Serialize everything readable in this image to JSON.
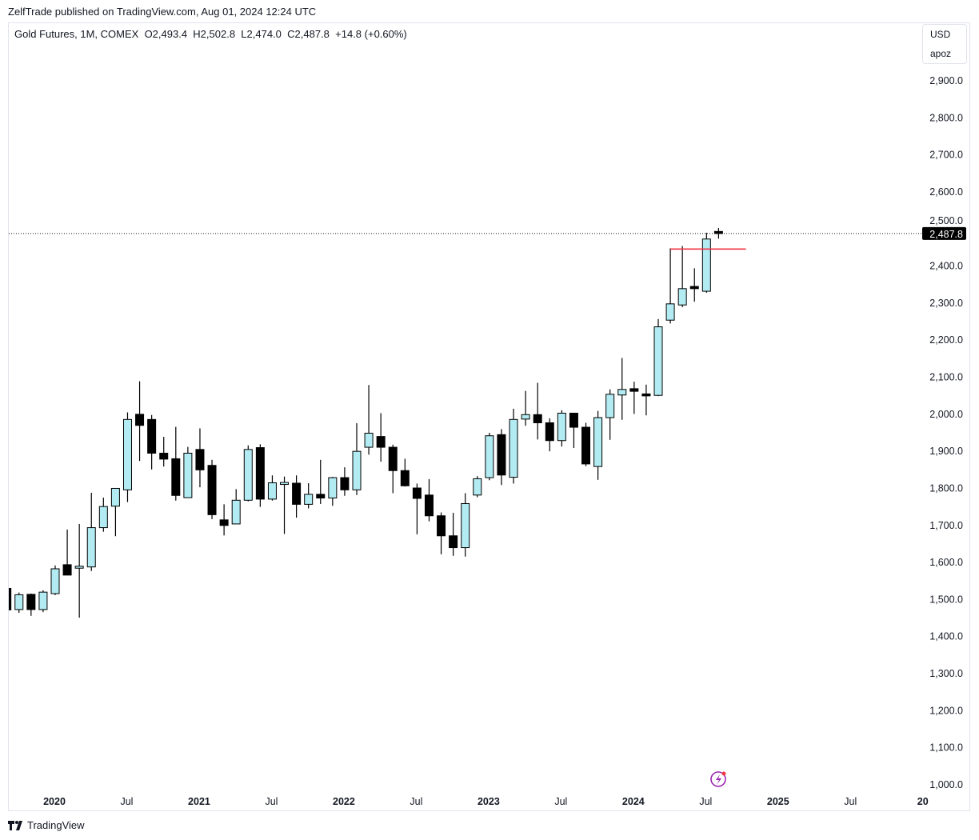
{
  "publisher_line": "ZelfTrade published on TradingView.com, Aug 01, 2024 12:24 UTC",
  "legend": {
    "symbol": "Gold Futures, 1M, COMEX",
    "open": "O2,493.4",
    "high": "H2,502.8",
    "low": "L2,474.0",
    "close": "C2,487.8",
    "change": "+14.8 (+0.60%)"
  },
  "unit_box": {
    "currency": "USD",
    "unit": "apoz"
  },
  "last_price_label": "2,487.8",
  "footer_brand": "TradingView",
  "colors": {
    "up": "#b2ebf2",
    "down": "#000000",
    "outline": "#000000",
    "level": "#f23645",
    "lightning": "#9c27b0"
  },
  "chart_data": {
    "type": "candlestick",
    "title": "Gold Futures, 1M, COMEX",
    "ylim": [
      1000,
      2900
    ],
    "yticks": [
      "1,000.0",
      "1,100.0",
      "1,200.0",
      "1,300.0",
      "1,400.0",
      "1,500.0",
      "1,600.0",
      "1,700.0",
      "1,800.0",
      "1,900.0",
      "2,000.0",
      "2,100.0",
      "2,200.0",
      "2,300.0",
      "2,400.0",
      "2,500.0",
      "2,600.0",
      "2,700.0",
      "2,800.0",
      "2,900.0"
    ],
    "xticks": [
      {
        "label": "2020",
        "bold": true,
        "month": 0
      },
      {
        "label": "Jul",
        "bold": false,
        "month": 6
      },
      {
        "label": "2021",
        "bold": true,
        "month": 12
      },
      {
        "label": "Jul",
        "bold": false,
        "month": 18
      },
      {
        "label": "2022",
        "bold": true,
        "month": 24
      },
      {
        "label": "Jul",
        "bold": false,
        "month": 30
      },
      {
        "label": "2023",
        "bold": true,
        "month": 36
      },
      {
        "label": "Jul",
        "bold": false,
        "month": 42
      },
      {
        "label": "2024",
        "bold": true,
        "month": 48
      },
      {
        "label": "Jul",
        "bold": false,
        "month": 54
      },
      {
        "label": "2025",
        "bold": true,
        "month": 60
      },
      {
        "label": "Jul",
        "bold": false,
        "month": 66
      },
      {
        "label": "20",
        "bold": true,
        "month": 72
      }
    ],
    "last_price": 2487.8,
    "level_line": {
      "price": 2446,
      "from_month": 51,
      "to_month": 57
    },
    "candles": [
      {
        "m": "2019-09",
        "o": 1530,
        "h": 1566,
        "l": 1465,
        "c": 1472
      },
      {
        "m": "2019-10",
        "o": 1473,
        "h": 1519,
        "l": 1464,
        "c": 1513
      },
      {
        "m": "2019-11",
        "o": 1514,
        "h": 1516,
        "l": 1456,
        "c": 1473
      },
      {
        "m": "2019-12",
        "o": 1473,
        "h": 1525,
        "l": 1466,
        "c": 1520
      },
      {
        "m": "2020-01",
        "o": 1516,
        "h": 1592,
        "l": 1512,
        "c": 1583
      },
      {
        "m": "2020-02",
        "o": 1594,
        "h": 1689,
        "l": 1570,
        "c": 1566
      },
      {
        "m": "2020-03",
        "o": 1588,
        "h": 1704,
        "l": 1451,
        "c": 1590
      },
      {
        "m": "2020-04",
        "o": 1588,
        "h": 1788,
        "l": 1577,
        "c": 1694
      },
      {
        "m": "2020-05",
        "o": 1694,
        "h": 1775,
        "l": 1683,
        "c": 1751
      },
      {
        "m": "2020-06",
        "o": 1752,
        "h": 1800,
        "l": 1671,
        "c": 1800
      },
      {
        "m": "2020-07",
        "o": 1796,
        "h": 2005,
        "l": 1763,
        "c": 1986
      },
      {
        "m": "2020-08",
        "o": 2000,
        "h": 2089,
        "l": 1874,
        "c": 1970
      },
      {
        "m": "2020-09",
        "o": 1986,
        "h": 1998,
        "l": 1851,
        "c": 1895
      },
      {
        "m": "2020-10",
        "o": 1895,
        "h": 1939,
        "l": 1859,
        "c": 1879
      },
      {
        "m": "2020-11",
        "o": 1880,
        "h": 1966,
        "l": 1767,
        "c": 1781
      },
      {
        "m": "2020-12",
        "o": 1775,
        "h": 1912,
        "l": 1776,
        "c": 1895
      },
      {
        "m": "2021-01",
        "o": 1905,
        "h": 1962,
        "l": 1803,
        "c": 1850
      },
      {
        "m": "2021-02",
        "o": 1862,
        "h": 1877,
        "l": 1717,
        "c": 1729
      },
      {
        "m": "2021-03",
        "o": 1715,
        "h": 1757,
        "l": 1673,
        "c": 1700
      },
      {
        "m": "2021-04",
        "o": 1704,
        "h": 1798,
        "l": 1704,
        "c": 1768
      },
      {
        "m": "2021-05",
        "o": 1768,
        "h": 1916,
        "l": 1765,
        "c": 1905
      },
      {
        "m": "2021-06",
        "o": 1910,
        "h": 1919,
        "l": 1750,
        "c": 1771
      },
      {
        "m": "2021-07",
        "o": 1771,
        "h": 1835,
        "l": 1767,
        "c": 1815
      },
      {
        "m": "2021-08",
        "o": 1815,
        "h": 1832,
        "l": 1677,
        "c": 1816
      },
      {
        "m": "2021-09",
        "o": 1814,
        "h": 1835,
        "l": 1721,
        "c": 1757
      },
      {
        "m": "2021-10",
        "o": 1757,
        "h": 1814,
        "l": 1746,
        "c": 1784
      },
      {
        "m": "2021-11",
        "o": 1784,
        "h": 1877,
        "l": 1758,
        "c": 1774
      },
      {
        "m": "2021-12",
        "o": 1774,
        "h": 1831,
        "l": 1753,
        "c": 1829
      },
      {
        "m": "2022-01",
        "o": 1829,
        "h": 1857,
        "l": 1780,
        "c": 1796
      },
      {
        "m": "2022-02",
        "o": 1796,
        "h": 1976,
        "l": 1782,
        "c": 1900
      },
      {
        "m": "2022-03",
        "o": 1911,
        "h": 2079,
        "l": 1891,
        "c": 1949
      },
      {
        "m": "2022-04",
        "o": 1940,
        "h": 2003,
        "l": 1872,
        "c": 1911
      },
      {
        "m": "2022-05",
        "o": 1911,
        "h": 1918,
        "l": 1787,
        "c": 1848
      },
      {
        "m": "2022-06",
        "o": 1848,
        "h": 1880,
        "l": 1805,
        "c": 1807
      },
      {
        "m": "2022-07",
        "o": 1801,
        "h": 1813,
        "l": 1676,
        "c": 1773
      },
      {
        "m": "2022-08",
        "o": 1782,
        "h": 1825,
        "l": 1711,
        "c": 1726
      },
      {
        "m": "2022-09",
        "o": 1726,
        "h": 1735,
        "l": 1622,
        "c": 1672
      },
      {
        "m": "2022-10",
        "o": 1672,
        "h": 1734,
        "l": 1618,
        "c": 1640
      },
      {
        "m": "2022-11",
        "o": 1640,
        "h": 1787,
        "l": 1616,
        "c": 1759
      },
      {
        "m": "2022-12",
        "o": 1782,
        "h": 1833,
        "l": 1776,
        "c": 1826
      },
      {
        "m": "2023-01",
        "o": 1829,
        "h": 1950,
        "l": 1822,
        "c": 1942
      },
      {
        "m": "2023-02",
        "o": 1945,
        "h": 1960,
        "l": 1809,
        "c": 1836
      },
      {
        "m": "2023-03",
        "o": 1830,
        "h": 2015,
        "l": 1813,
        "c": 1986
      },
      {
        "m": "2023-04",
        "o": 1987,
        "h": 2063,
        "l": 1969,
        "c": 1999
      },
      {
        "m": "2023-05",
        "o": 1999,
        "h": 2085,
        "l": 1932,
        "c": 1977
      },
      {
        "m": "2023-06",
        "o": 1977,
        "h": 1989,
        "l": 1900,
        "c": 1929
      },
      {
        "m": "2023-07",
        "o": 1929,
        "h": 2011,
        "l": 1913,
        "c": 2003
      },
      {
        "m": "2023-08",
        "o": 2003,
        "h": 2003,
        "l": 1909,
        "c": 1965
      },
      {
        "m": "2023-09",
        "o": 1965,
        "h": 1977,
        "l": 1860,
        "c": 1866
      },
      {
        "m": "2023-10",
        "o": 1859,
        "h": 2009,
        "l": 1823,
        "c": 1991
      },
      {
        "m": "2023-11",
        "o": 1991,
        "h": 2067,
        "l": 1931,
        "c": 2054
      },
      {
        "m": "2023-12",
        "o": 2052,
        "h": 2152,
        "l": 1985,
        "c": 2067
      },
      {
        "m": "2024-01",
        "o": 2069,
        "h": 2088,
        "l": 2001,
        "c": 2062
      },
      {
        "m": "2024-02",
        "o": 2055,
        "h": 2080,
        "l": 1997,
        "c": 2051
      },
      {
        "m": "2024-03",
        "o": 2051,
        "h": 2257,
        "l": 2049,
        "c": 2236
      },
      {
        "m": "2024-04",
        "o": 2254,
        "h": 2448,
        "l": 2245,
        "c": 2298
      },
      {
        "m": "2024-05",
        "o": 2295,
        "h": 2454,
        "l": 2289,
        "c": 2339
      },
      {
        "m": "2024-06",
        "o": 2345,
        "h": 2394,
        "l": 2304,
        "c": 2339
      },
      {
        "m": "2024-07",
        "o": 2332,
        "h": 2490,
        "l": 2328,
        "c": 2473
      },
      {
        "m": "2024-08",
        "o": 2493.4,
        "h": 2502.8,
        "l": 2474.0,
        "c": 2487.8
      }
    ]
  }
}
